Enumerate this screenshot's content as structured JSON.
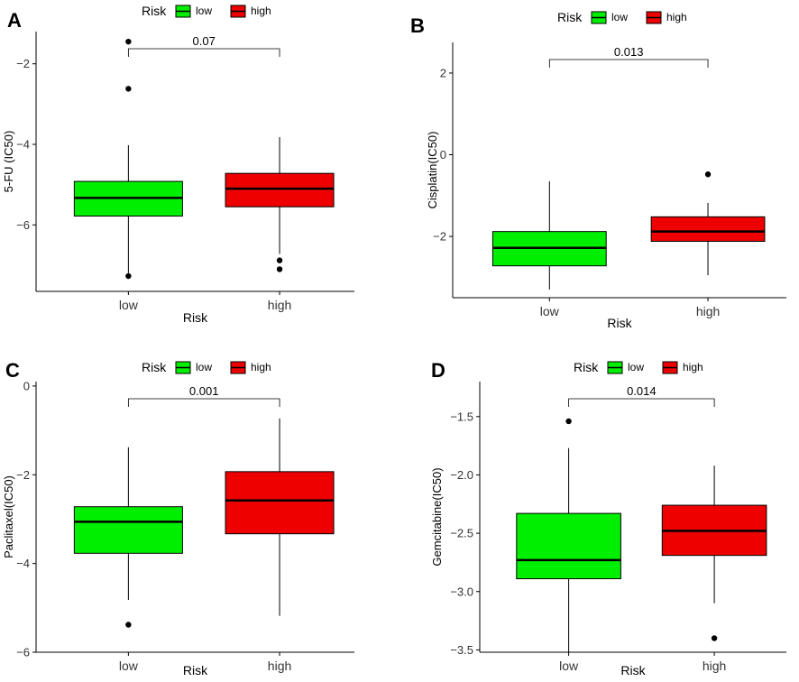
{
  "colors": {
    "low": "#00ee00",
    "high": "#ee0000",
    "axis": "#000000"
  },
  "chart_data": [
    {
      "panel": "A",
      "type": "boxplot",
      "legend_title": "Risk",
      "legend_labels": [
        "low",
        "high"
      ],
      "ylabel": "5-FU (IC50)",
      "xlabel": "Risk",
      "ylim": [
        -7.65,
        -1.2
      ],
      "yticks": [
        -2,
        -4,
        -6
      ],
      "pvalue": "0.07",
      "groups": [
        {
          "name": "low",
          "whisker_low": -7.2,
          "q1": -5.78,
          "median": -5.33,
          "q3": -4.92,
          "whisker_high": -4.02,
          "outliers": [
            -1.45,
            -2.62,
            -7.27
          ]
        },
        {
          "name": "high",
          "whisker_low": -6.72,
          "q1": -5.55,
          "median": -5.1,
          "q3": -4.72,
          "whisker_high": -3.82,
          "outliers": [
            -6.88,
            -7.1
          ]
        }
      ]
    },
    {
      "panel": "B",
      "type": "boxplot",
      "legend_title": "Risk",
      "legend_labels": [
        "low",
        "high"
      ],
      "ylabel": "Cisplatin(IC50)",
      "xlabel": "Risk",
      "ylim": [
        -3.5,
        2.75
      ],
      "yticks": [
        2,
        0,
        -2
      ],
      "pvalue": "0.013",
      "groups": [
        {
          "name": "low",
          "whisker_low": -3.3,
          "q1": -2.72,
          "median": -2.28,
          "q3": -1.88,
          "whisker_high": -0.65,
          "outliers": []
        },
        {
          "name": "high",
          "whisker_low": -2.95,
          "q1": -2.12,
          "median": -1.88,
          "q3": -1.52,
          "whisker_high": -1.18,
          "outliers": [
            -0.48
          ]
        }
      ]
    },
    {
      "panel": "C",
      "type": "boxplot",
      "legend_title": "Risk",
      "legend_labels": [
        "low",
        "high"
      ],
      "ylabel": "Paclitaxel(IC50)",
      "xlabel": "Risk",
      "ylim": [
        -6.0,
        0.1
      ],
      "yticks": [
        0,
        -2,
        -4,
        -6
      ],
      "pvalue": "0.001",
      "groups": [
        {
          "name": "low",
          "whisker_low": -4.82,
          "q1": -3.77,
          "median": -3.06,
          "q3": -2.72,
          "whisker_high": -1.38,
          "outliers": [
            -5.38
          ]
        },
        {
          "name": "high",
          "whisker_low": -5.18,
          "q1": -3.33,
          "median": -2.58,
          "q3": -1.93,
          "whisker_high": -0.73,
          "outliers": []
        }
      ]
    },
    {
      "panel": "D",
      "type": "boxplot",
      "legend_title": "Risk",
      "legend_labels": [
        "low",
        "high"
      ],
      "ylabel": "Gemcitabine(IC50)",
      "xlabel": "Risk",
      "ylim": [
        -3.52,
        -1.2
      ],
      "yticks": [
        -1.5,
        -2.0,
        -2.5,
        -3.0,
        -3.5
      ],
      "ytick_labels": [
        "-1.5",
        "-2.0",
        "-2.5",
        "-3.0",
        "-3.5"
      ],
      "pvalue": "0.014",
      "groups": [
        {
          "name": "low",
          "whisker_low": -3.52,
          "q1": -2.89,
          "median": -2.73,
          "q3": -2.33,
          "whisker_high": -1.77,
          "outliers": [
            -1.54
          ]
        },
        {
          "name": "high",
          "whisker_low": -3.1,
          "q1": -2.69,
          "median": -2.48,
          "q3": -2.26,
          "whisker_high": -1.92,
          "outliers": [
            -3.4
          ]
        }
      ]
    }
  ]
}
